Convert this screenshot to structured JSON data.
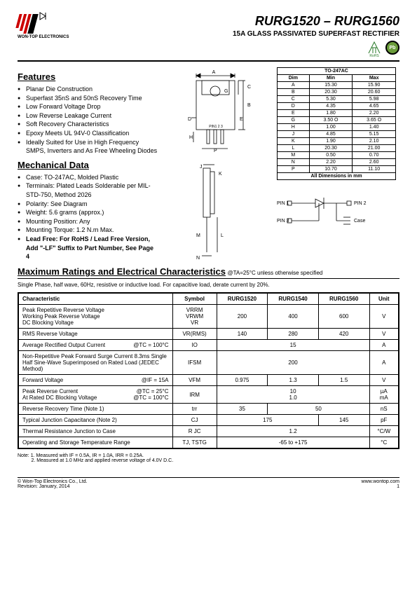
{
  "header": {
    "company": "WON-TOP ELECTRONICS",
    "title": "RURG1520 – RURG1560",
    "subtitle": "15A GLASS PASSIVATED SUPERFAST RECTIFIER",
    "rohs_label": "RoHS",
    "pb_label": "Pb"
  },
  "features": {
    "title": "Features",
    "items": [
      "Planar Die Construction",
      "Superfast 35nS and 50nS Recovery Time",
      "Low Forward Voltage Drop",
      "Low Reverse Leakage Current",
      "Soft Recovery Characteristics",
      "Epoxy Meets UL 94V-0 Classification",
      "Ideally Suited for Use in High Frequency SMPS, Inverters and As Free Wheeling Diodes"
    ]
  },
  "mechanical": {
    "title": "Mechanical Data",
    "items": [
      "Case: TO-247AC, Molded Plastic",
      "Terminals: Plated Leads Solderable per MIL-STD-750, Method 2026",
      "Polarity: See Diagram",
      "Weight: 5.6 grams (approx.)",
      "Mounting Position: Any",
      "Mounting Torque: 1.2 N.m Max."
    ],
    "leadfree": "Lead Free: For RoHS / Lead Free Version, Add \"-LF\" Suffix to Part Number, See Page 4"
  },
  "package": {
    "title": "TO-247AC",
    "pin_label": "PIN1   2     3",
    "dim_header": [
      "Dim",
      "Min",
      "Max"
    ],
    "dims": [
      [
        "A",
        "15.30",
        "15.90"
      ],
      [
        "B",
        "20.30",
        "20.60"
      ],
      [
        "C",
        "5.30",
        "5.98"
      ],
      [
        "D",
        "4.35",
        "4.65"
      ],
      [
        "E",
        "1.80",
        "2.20"
      ],
      [
        "G",
        "3.50 O",
        "3.65 O"
      ],
      [
        "H",
        "1.00",
        "1.40"
      ],
      [
        "J",
        "4.85",
        "5.15"
      ],
      [
        "K",
        "1.90",
        "2.10"
      ],
      [
        "L",
        "20.30",
        "21.00"
      ],
      [
        "M",
        "0.50",
        "0.70"
      ],
      [
        "N",
        "2.20",
        "2.60"
      ],
      [
        "P",
        "10.70",
        "11.10"
      ]
    ],
    "dim_note": "All Dimensions in mm",
    "pins": {
      "p1": "PIN 1",
      "p2": "PIN 2",
      "p3": "PIN 3",
      "case": "Case"
    }
  },
  "specs": {
    "title": "Maximum Ratings and Electrical Characteristics",
    "condition": " @TA=25°C unless otherwise specified",
    "note": "Single Phase, half wave, 60Hz, resistive or inductive load. For capacitive load, derate current by 20%.",
    "headers": [
      "Characteristic",
      "Symbol",
      "RURG1520",
      "RURG1540",
      "RURG1560",
      "Unit"
    ],
    "rows": [
      {
        "char": "Peak Repetitive Reverse Voltage\nWorking Peak Reverse Voltage\nDC Blocking Voltage",
        "sym": "VRRM\nVRWM\nVR",
        "v": [
          "200",
          "400",
          "600"
        ],
        "unit": "V"
      },
      {
        "char": "RMS Reverse Voltage",
        "sym": "VR(RMS)",
        "v": [
          "140",
          "280",
          "420"
        ],
        "unit": "V"
      },
      {
        "char": "Average Rectified Output Current",
        "cond": "@TC = 100°C",
        "sym": "IO",
        "span": "15",
        "unit": "A"
      },
      {
        "char": "Non-Repetitive Peak Forward Surge Current 8.3ms Single Half Sine-Wave Superimposed on Rated Load (JEDEC Method)",
        "sym": "IFSM",
        "span": "200",
        "unit": "A"
      },
      {
        "char": "Forward Voltage",
        "cond": "@IF = 15A",
        "sym": "VFM",
        "v": [
          "0.975",
          "1.3",
          "1.5"
        ],
        "unit": "V"
      },
      {
        "char": "Peak Reverse Current\nAt Rated DC Blocking Voltage",
        "cond": "@TC = 25°C\n@TC = 100°C",
        "sym": "IRM",
        "span": "10\n1.0",
        "unit": "µA\nmA"
      },
      {
        "char": "Reverse Recovery Time (Note 1)",
        "sym": "trr",
        "v2": [
          "35",
          "50"
        ],
        "unit": "nS"
      },
      {
        "char": "Typical Junction Capacitance (Note 2)",
        "sym": "CJ",
        "v2": [
          "175",
          "145"
        ],
        "spanw": [
          2,
          1
        ],
        "unit": "pF"
      },
      {
        "char": "Thermal Resistance Junction to Case",
        "sym": "R JC",
        "span": "1.2",
        "unit": "°C/W"
      },
      {
        "char": "Operating and Storage Temperature Range",
        "sym": "TJ, TSTG",
        "span": "-65 to +175",
        "unit": "°C"
      }
    ]
  },
  "notes": {
    "label": "Note:",
    "n1": "1. Measured with IF = 0.5A, IR = 1.0A, IRR = 0.25A.",
    "n2": "2. Measured at 1.0 MHz and applied reverse voltage of 4.0V D.C."
  },
  "footer": {
    "copyright": "© Won-Top Electronics Co., Ltd.",
    "revision": "Revision: January, 2014",
    "url": "www.wontop.com",
    "page": "1"
  }
}
